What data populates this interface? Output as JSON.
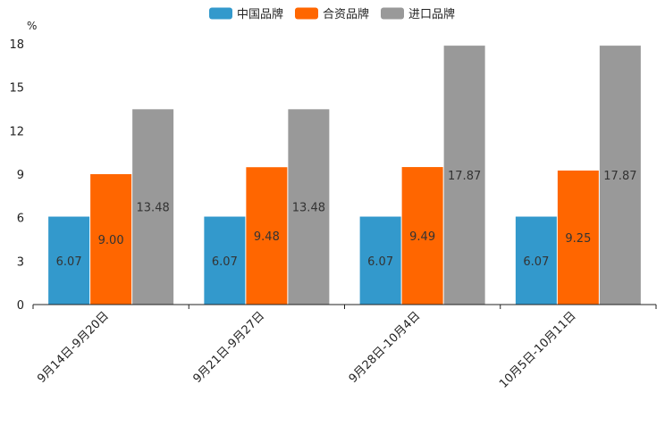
{
  "chart_data": {
    "type": "bar",
    "title": "",
    "ylabel": "%",
    "xlabel": "",
    "ylim": [
      0,
      18
    ],
    "yticks": [
      "0",
      "3",
      "6",
      "9",
      "12",
      "15",
      "18"
    ],
    "legend_position": "top",
    "categories": [
      "9月14日-9月20日",
      "9月21日-9月27日",
      "9月28日-10月4日",
      "10月5日-10月11日"
    ],
    "series": [
      {
        "name": "中国品牌",
        "color": "#3399CC",
        "values": [
          6.07,
          6.07,
          6.07,
          6.07
        ],
        "labels": [
          "6.07",
          "6.07",
          "6.07",
          "6.07"
        ]
      },
      {
        "name": "合资品牌",
        "color": "#FF6600",
        "values": [
          9.0,
          9.48,
          9.49,
          9.25
        ],
        "labels": [
          "9.00",
          "9.48",
          "9.49",
          "9.25"
        ]
      },
      {
        "name": "进口品牌",
        "color": "#999999",
        "values": [
          13.48,
          13.48,
          17.87,
          17.87
        ],
        "labels": [
          "13.48",
          "13.48",
          "17.87",
          "17.87"
        ]
      }
    ]
  }
}
